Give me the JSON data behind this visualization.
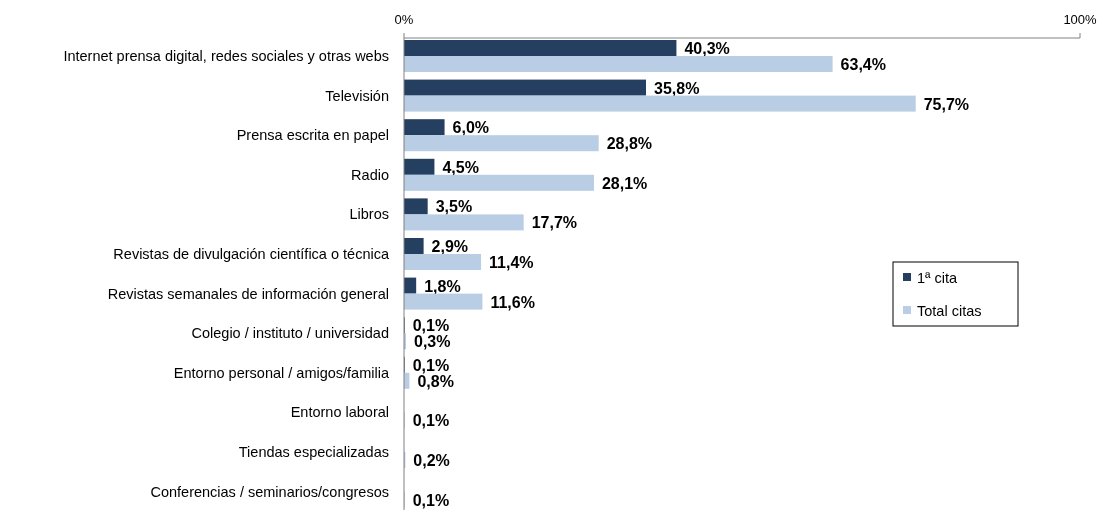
{
  "chart_data": {
    "type": "bar",
    "orientation": "horizontal",
    "categories": [
      "Internet  prensa digital, redes sociales y otras webs",
      "Televisión",
      "Prensa escrita en papel",
      "Radio",
      "Libros",
      "Revistas de divulgación científica o técnica",
      "Revistas semanales de información general",
      "Colegio / instituto / universidad",
      "Entorno personal / amigos/familia",
      "Entorno laboral",
      "Tiendas especializadas",
      "Conferencias / seminarios/congresos"
    ],
    "series": [
      {
        "name": "1ª cita",
        "color": "#243f60",
        "values": [
          40.3,
          35.8,
          6.0,
          4.5,
          3.5,
          2.9,
          1.8,
          0.1,
          0.1,
          null,
          null,
          null
        ],
        "value_labels": [
          "40,3%",
          "35,8%",
          "6,0%",
          "4,5%",
          "3,5%",
          "2,9%",
          "1,8%",
          "0,1%",
          "0,1%",
          null,
          null,
          null
        ]
      },
      {
        "name": "Total citas",
        "color": "#b9cde5",
        "values": [
          63.4,
          75.7,
          28.8,
          28.1,
          17.7,
          11.4,
          11.6,
          0.3,
          0.8,
          0.1,
          0.2,
          0.1
        ],
        "value_labels": [
          "63,4%",
          "75,7%",
          "28,8%",
          "28,1%",
          "17,7%",
          "11,4%",
          "11,6%",
          "0,3%",
          "0,8%",
          "0,1%",
          "0,2%",
          "0,1%"
        ]
      }
    ],
    "xlim": [
      0,
      100
    ],
    "xticks": [
      {
        "value": 0,
        "label": "0%"
      },
      {
        "value": 100,
        "label": "100%"
      }
    ],
    "legend": "right"
  }
}
